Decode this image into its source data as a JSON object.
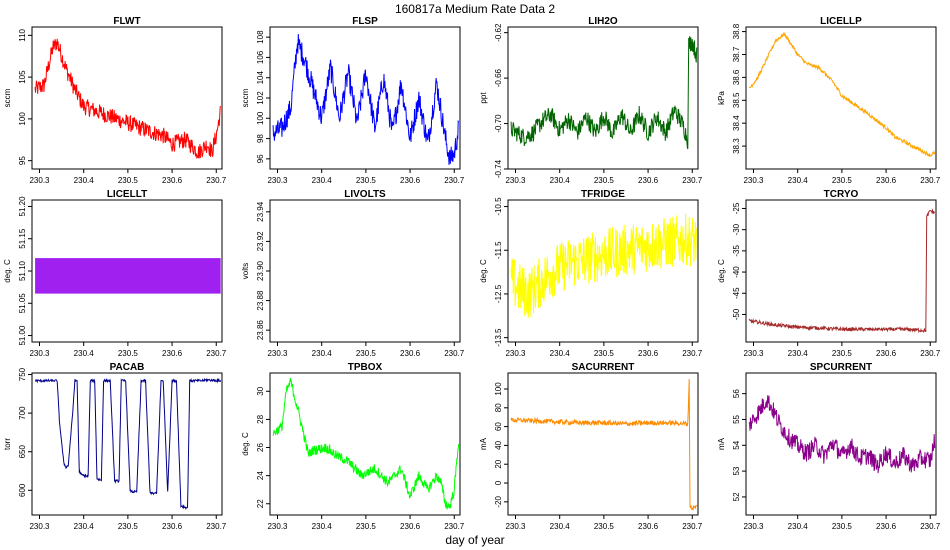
{
  "figure": {
    "title": "160817a   Medium Rate Data 2",
    "xlabel": "day of year"
  },
  "chart_data": [
    {
      "type": "line",
      "title": "FLWT",
      "ylabel": "sccm",
      "color": "#ff0000",
      "xlim": [
        230.283,
        230.713
      ],
      "ylim": [
        94,
        111
      ],
      "xticks": [
        "230.3",
        "230.4",
        "230.5",
        "230.6",
        "230.7"
      ],
      "yticks": [
        "95",
        "100",
        "105",
        "110"
      ],
      "x": [
        230.29,
        230.31,
        230.33,
        230.34,
        230.36,
        230.38,
        230.4,
        230.45,
        230.5,
        230.55,
        230.58,
        230.6,
        230.63,
        230.65,
        230.66,
        230.68,
        230.69,
        230.7,
        230.71
      ],
      "y": [
        103.5,
        104,
        108.5,
        109.2,
        106,
        103.5,
        101.5,
        100.5,
        99.5,
        98.5,
        98,
        97,
        97.5,
        96.5,
        96,
        97,
        96,
        98,
        101
      ],
      "noise": 1.0
    },
    {
      "type": "line",
      "title": "FLSP",
      "ylabel": "sccm",
      "color": "#0000ff",
      "xlim": [
        230.283,
        230.713
      ],
      "ylim": [
        95,
        109
      ],
      "xticks": [
        "230.3",
        "230.4",
        "230.5",
        "230.6",
        "230.7"
      ],
      "yticks": [
        "96",
        "98",
        "100",
        "102",
        "104",
        "106",
        "108"
      ],
      "x": [
        230.29,
        230.31,
        230.33,
        230.345,
        230.36,
        230.38,
        230.4,
        230.42,
        230.44,
        230.46,
        230.48,
        230.5,
        230.52,
        230.54,
        230.56,
        230.58,
        230.6,
        230.62,
        230.64,
        230.66,
        230.68,
        230.69,
        230.7,
        230.71
      ],
      "y": [
        98.5,
        99,
        101,
        107.5,
        106,
        103,
        100,
        105,
        100,
        104.5,
        99.5,
        104.5,
        99,
        104,
        98.5,
        103.5,
        98,
        102,
        97.5,
        103.5,
        98,
        96,
        96.5,
        99
      ],
      "noise": 1.1
    },
    {
      "type": "line",
      "title": "LIH2O",
      "ylabel": "ppt",
      "color": "#006400",
      "xlim": [
        230.283,
        230.713
      ],
      "ylim": [
        -0.74,
        -0.615
      ],
      "xticks": [
        "230.3",
        "230.4",
        "230.5",
        "230.6",
        "230.7"
      ],
      "yticks": [
        "-0.74",
        "-0.70",
        "-0.66",
        "-0.62"
      ],
      "x": [
        230.29,
        230.32,
        230.34,
        230.36,
        230.38,
        230.4,
        230.42,
        230.44,
        230.46,
        230.48,
        230.5,
        230.52,
        230.54,
        230.56,
        230.58,
        230.6,
        230.62,
        230.64,
        230.66,
        230.68,
        230.69,
        230.692,
        230.7,
        230.71
      ],
      "y": [
        -0.705,
        -0.712,
        -0.708,
        -0.698,
        -0.692,
        -0.706,
        -0.696,
        -0.708,
        -0.694,
        -0.708,
        -0.693,
        -0.709,
        -0.692,
        -0.708,
        -0.692,
        -0.708,
        -0.694,
        -0.708,
        -0.688,
        -0.702,
        -0.715,
        -0.63,
        -0.628,
        -0.64
      ],
      "noise": 0.008
    },
    {
      "type": "line",
      "title": "LICELLP",
      "ylabel": "kPa",
      "color": "#ffa500",
      "xlim": [
        230.283,
        230.713
      ],
      "ylim": [
        38.2,
        38.82
      ],
      "xticks": [
        "230.3",
        "230.4",
        "230.5",
        "230.6",
        "230.7"
      ],
      "yticks": [
        "38.3",
        "38.4",
        "38.5",
        "38.6",
        "38.7",
        "38.8"
      ],
      "x": [
        230.29,
        230.31,
        230.33,
        230.35,
        230.37,
        230.38,
        230.4,
        230.42,
        230.45,
        230.48,
        230.5,
        230.53,
        230.56,
        230.6,
        230.62,
        230.65,
        230.68,
        230.7,
        230.71
      ],
      "y": [
        38.55,
        38.6,
        38.68,
        38.76,
        38.79,
        38.76,
        38.7,
        38.66,
        38.64,
        38.58,
        38.52,
        38.48,
        38.44,
        38.38,
        38.34,
        38.31,
        38.28,
        38.26,
        38.27
      ],
      "noise": 0.008
    },
    {
      "type": "area",
      "title": "LICELLT",
      "ylabel": "deg. C",
      "color": "#a020f0",
      "xlim": [
        230.283,
        230.713
      ],
      "ylim": [
        50.99,
        51.21
      ],
      "xticks": [
        "230.3",
        "230.4",
        "230.5",
        "230.6",
        "230.7"
      ],
      "yticks": [
        "51.00",
        "51.05",
        "51.10",
        "51.15",
        "51.20"
      ],
      "x": [
        230.29,
        230.71
      ],
      "ymin": 51.065,
      "ymax": 51.12
    },
    {
      "type": "line",
      "title": "LIVOLTS",
      "ylabel": "volts",
      "color": "#000000",
      "xlim": [
        230.283,
        230.713
      ],
      "ylim": [
        23.852,
        23.948
      ],
      "xticks": [
        "230.3",
        "230.4",
        "230.5",
        "230.6",
        "230.7"
      ],
      "yticks": [
        "23.86",
        "23.88",
        "23.90",
        "23.92",
        "23.94"
      ],
      "x": [],
      "y": [],
      "noise": 0
    },
    {
      "type": "line",
      "title": "TFRIDGE",
      "ylabel": "deg. C",
      "color": "#ffff00",
      "xlim": [
        230.283,
        230.713
      ],
      "ylim": [
        -13.6,
        -10.35
      ],
      "xticks": [
        "230.3",
        "230.4",
        "230.5",
        "230.6",
        "230.7"
      ],
      "yticks": [
        "-13.5",
        "-12.5",
        "-11.5",
        "-10.5"
      ],
      "x": [
        230.29,
        230.31,
        230.33,
        230.35,
        230.38,
        230.42,
        230.46,
        230.5,
        230.55,
        230.6,
        230.63,
        230.66,
        230.69,
        230.71
      ],
      "y": [
        -12.2,
        -12.4,
        -12.5,
        -12.3,
        -12.0,
        -11.8,
        -11.7,
        -11.6,
        -11.5,
        -11.4,
        -11.35,
        -11.3,
        -11.25,
        -11.3
      ],
      "noise": 0.6
    },
    {
      "type": "line",
      "title": "TCRYO",
      "ylabel": "deg. C",
      "color": "#a52a2a",
      "xlim": [
        230.283,
        230.713
      ],
      "ylim": [
        -56.5,
        -23
      ],
      "xticks": [
        "230.3",
        "230.4",
        "230.5",
        "230.6",
        "230.7"
      ],
      "yticks": [
        "-50",
        "-45",
        "-40",
        "-35",
        "-30",
        "-25"
      ],
      "x": [
        230.29,
        230.32,
        230.35,
        230.4,
        230.45,
        230.5,
        230.55,
        230.6,
        230.65,
        230.69,
        230.692,
        230.7,
        230.71
      ],
      "y": [
        -51.5,
        -52,
        -52.5,
        -53,
        -53.2,
        -53.5,
        -53.5,
        -53.5,
        -53.5,
        -53.8,
        -27,
        -25.5,
        -26
      ],
      "noise": 0.4
    },
    {
      "type": "line",
      "title": "PACAB",
      "ylabel": "torr",
      "color": "#00008b",
      "xlim": [
        230.283,
        230.713
      ],
      "ylim": [
        568,
        752
      ],
      "xticks": [
        "230.3",
        "230.4",
        "230.5",
        "230.6",
        "230.7"
      ],
      "yticks": [
        "600",
        "650",
        "700",
        "750"
      ],
      "x": [
        230.29,
        230.34,
        230.345,
        230.355,
        230.36,
        230.365,
        230.375,
        230.38,
        230.385,
        230.39,
        230.395,
        230.41,
        230.415,
        230.425,
        230.43,
        230.44,
        230.445,
        230.46,
        230.47,
        230.48,
        230.485,
        230.495,
        230.505,
        230.51,
        230.52,
        230.53,
        230.54,
        230.55,
        230.555,
        230.565,
        230.575,
        230.58,
        230.59,
        230.6,
        230.61,
        230.62,
        230.635,
        230.64,
        230.65,
        230.66,
        230.665,
        230.68,
        230.71
      ],
      "y": [
        742,
        742,
        690,
        635,
        630,
        632,
        700,
        742,
        742,
        625,
        620,
        618,
        742,
        742,
        615,
        613,
        742,
        742,
        612,
        612,
        742,
        742,
        600,
        598,
        598,
        742,
        742,
        598,
        596,
        596,
        742,
        742,
        597,
        742,
        742,
        580,
        577,
        742,
        742,
        742,
        742,
        743,
        742
      ],
      "noise": 1.5
    },
    {
      "type": "line",
      "title": "TPBOX",
      "ylabel": "deg. C",
      "color": "#00ff00",
      "xlim": [
        230.283,
        230.713
      ],
      "ylim": [
        21.2,
        31.3
      ],
      "xticks": [
        "230.3",
        "230.4",
        "230.5",
        "230.6",
        "230.7"
      ],
      "yticks": [
        "22",
        "24",
        "26",
        "28",
        "30"
      ],
      "x": [
        230.29,
        230.31,
        230.32,
        230.33,
        230.35,
        230.37,
        230.38,
        230.41,
        230.43,
        230.46,
        230.49,
        230.52,
        230.55,
        230.58,
        230.6,
        230.62,
        230.64,
        230.66,
        230.67,
        230.68,
        230.69,
        230.7,
        230.71
      ],
      "y": [
        27,
        27.5,
        30,
        30.7,
        28.2,
        25.5,
        25.8,
        26,
        25.5,
        25,
        24,
        24.5,
        23.5,
        24.5,
        22.5,
        24,
        23,
        24,
        23.5,
        22,
        21.8,
        23,
        26.5
      ],
      "noise": 0.35
    },
    {
      "type": "line",
      "title": "SACURRENT",
      "ylabel": "mA",
      "color": "#ff8c00",
      "xlim": [
        230.283,
        230.713
      ],
      "ylim": [
        -34,
        117
      ],
      "xticks": [
        "230.3",
        "230.4",
        "230.5",
        "230.6",
        "230.7"
      ],
      "yticks": [
        "-20",
        "0",
        "20",
        "40",
        "60",
        "80",
        "100"
      ],
      "x": [
        230.29,
        230.35,
        230.4,
        230.45,
        230.5,
        230.55,
        230.6,
        230.65,
        230.69,
        230.693,
        230.695,
        230.7,
        230.71
      ],
      "y": [
        67,
        66,
        65,
        64,
        64,
        63,
        64,
        64,
        63,
        110,
        -25,
        -27,
        -25
      ],
      "noise": 2.5
    },
    {
      "type": "line",
      "title": "SPCURRENT",
      "ylabel": "mA",
      "color": "#8b008b",
      "xlim": [
        230.283,
        230.713
      ],
      "ylim": [
        51.3,
        56.8
      ],
      "xticks": [
        "230.3",
        "230.4",
        "230.5",
        "230.6",
        "230.7"
      ],
      "yticks": [
        "52",
        "53",
        "54",
        "55",
        "56"
      ],
      "x": [
        230.29,
        230.3,
        230.32,
        230.33,
        230.34,
        230.36,
        230.38,
        230.4,
        230.42,
        230.44,
        230.46,
        230.48,
        230.5,
        230.52,
        230.54,
        230.56,
        230.58,
        230.6,
        230.62,
        230.64,
        230.66,
        230.68,
        230.7,
        230.71
      ],
      "y": [
        54.8,
        55,
        55.5,
        55.8,
        55.5,
        54.8,
        54.3,
        54,
        53.7,
        54,
        53.6,
        54.1,
        53.6,
        54,
        53.5,
        53.6,
        53.2,
        53.7,
        53.3,
        53.6,
        53.2,
        53.5,
        53.4,
        54.2
      ],
      "noise": 0.35
    }
  ]
}
